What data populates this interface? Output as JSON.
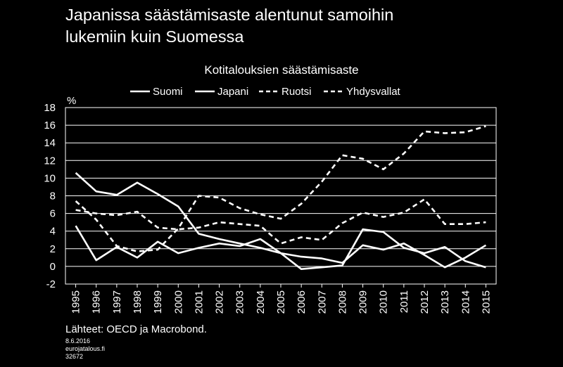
{
  "title_line1": "Japanissa säästämisaste alentunut samoihin",
  "title_line2": "lukemiin kuin Suomessa",
  "source": "Lähteet: OECD ja Macrobond.",
  "date": "8.6.2016",
  "site": "eurojatalous.fi",
  "code": "32672",
  "colors": {
    "background": "#000000",
    "line": "#ffffff",
    "grid": "#ffffff"
  },
  "chart_data": {
    "type": "line",
    "title": "Kotitalouksien säästämisaste",
    "ylabel": "%",
    "ylim": [
      -2,
      18
    ],
    "yticks": [
      -2,
      0,
      2,
      4,
      6,
      8,
      10,
      12,
      14,
      16,
      18
    ],
    "grid": true,
    "legend_position": "top",
    "x": [
      "1995",
      "1996",
      "1997",
      "1998",
      "1999",
      "2000",
      "2001",
      "2002",
      "2003",
      "2004",
      "2005",
      "2006",
      "2007",
      "2008",
      "2009",
      "2010",
      "2011",
      "2012",
      "2013",
      "2014",
      "2015"
    ],
    "series": [
      {
        "name": "Suomi",
        "style": "solid",
        "values": [
          4.6,
          0.7,
          2.2,
          1.0,
          2.8,
          1.5,
          2.1,
          2.6,
          2.3,
          3.1,
          1.5,
          -0.3,
          -0.1,
          0.1,
          4.2,
          3.9,
          2.1,
          1.5,
          2.2,
          0.6,
          -0.1
        ]
      },
      {
        "name": "Japani",
        "style": "solid",
        "values": [
          10.6,
          8.5,
          8.1,
          9.5,
          8.2,
          6.8,
          3.7,
          3.1,
          2.6,
          2.1,
          1.5,
          1.1,
          0.9,
          0.4,
          2.4,
          1.9,
          2.6,
          1.3,
          -0.1,
          1.0,
          2.4
        ]
      },
      {
        "name": "Ruotsi",
        "style": "dashed",
        "values": [
          7.4,
          5.3,
          2.3,
          1.7,
          1.9,
          4.3,
          8.0,
          7.8,
          6.6,
          5.9,
          5.4,
          7.1,
          9.6,
          12.6,
          12.2,
          11.0,
          12.8,
          15.3,
          15.1,
          15.2,
          15.9
        ]
      },
      {
        "name": "Yhdysvallat",
        "style": "dashed",
        "values": [
          6.4,
          6.0,
          5.8,
          6.2,
          4.4,
          4.2,
          4.4,
          5.0,
          4.8,
          4.6,
          2.6,
          3.3,
          3.0,
          4.9,
          6.1,
          5.6,
          6.1,
          7.6,
          4.8,
          4.8,
          5.0
        ]
      }
    ]
  }
}
